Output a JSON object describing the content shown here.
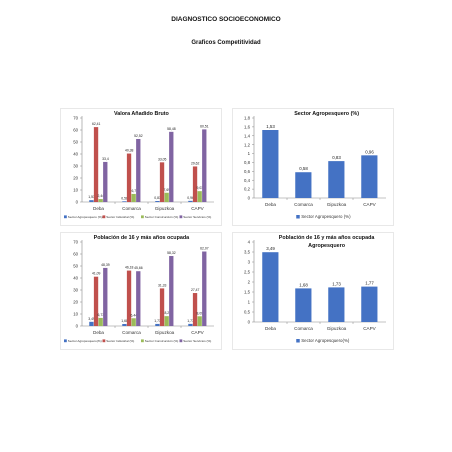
{
  "document": {
    "title": "DIAGNOSTICO SOCIOECONOMICO",
    "subtitle": "Graficos Competitividad"
  },
  "colors": {
    "agropesquero": "#4472C4",
    "industrial": "#C0504D",
    "construccion": "#9BBB59",
    "servicios": "#8064A2",
    "single": "#4472C4"
  },
  "chart_data": [
    {
      "type": "bar",
      "title": "Valora Añadido Bruto",
      "categories": [
        "Deba",
        "Comarca",
        "Gipuzkoa",
        "CAPV"
      ],
      "ylim": [
        0,
        70
      ],
      "yticks": [
        0,
        10,
        20,
        30,
        40,
        50,
        60,
        70
      ],
      "grid": false,
      "legend": "bottom",
      "series": [
        {
          "name": "Sector Agropesquero (%)",
          "values": [
            1.53,
            0.58,
            0.83,
            0.96
          ],
          "labels": [
            "1,53",
            "0,58",
            "0,83",
            "0,96"
          ]
        },
        {
          "name": "Sector Industrial (%)",
          "values": [
            62.41,
            40.38,
            33.05,
            29.62
          ],
          "labels": [
            "62,41",
            "40,38",
            "33,05",
            "29,62"
          ]
        },
        {
          "name": "Sector Construcción (%)",
          "values": [
            2.44,
            6.7,
            7.69,
            9.03
          ],
          "labels": [
            "2,44",
            "6,7",
            "7,69",
            "9,03"
          ]
        },
        {
          "name": "Sector Servicios (%)",
          "values": [
            33.4,
            52.52,
            58.48,
            60.51
          ],
          "labels": [
            "33,4",
            "52,52",
            "58,48",
            "60,51"
          ]
        }
      ]
    },
    {
      "type": "bar",
      "title": "Sector Agropesquero (%)",
      "categories": [
        "Deba",
        "Comarca",
        "Gipuzkoa",
        "CAPV"
      ],
      "ylim": [
        0,
        1.8
      ],
      "yticks": [
        "0",
        "0,2",
        "0,4",
        "0,6",
        "0,8",
        "1",
        "1,2",
        "1,4",
        "1,6",
        "1,8"
      ],
      "grid": false,
      "legend": "bottom",
      "series": [
        {
          "name": "Sector Agropesquero (%)",
          "values": [
            1.53,
            0.58,
            0.83,
            0.96
          ],
          "labels": [
            "1,53",
            "0,58",
            "0,83",
            "0,96"
          ]
        }
      ]
    },
    {
      "type": "bar",
      "title": "Población de 16 y más años ocupada",
      "categories": [
        "Deba",
        "Comarca",
        "Gipuzkoa",
        "CAPV"
      ],
      "ylim": [
        0,
        70
      ],
      "yticks": [
        0,
        10,
        20,
        30,
        40,
        50,
        60,
        70
      ],
      "grid": false,
      "legend": "bottom",
      "series": [
        {
          "name": "Sector Agropesquero(%)",
          "values": [
            3.49,
            1.68,
            1.73,
            1.77
          ],
          "labels": [
            "3,49",
            "1,68",
            "1,73",
            "1,77"
          ]
        },
        {
          "name": "Sector Industrial (%)",
          "values": [
            41.09,
            46.18,
            31.33,
            27.47
          ],
          "labels": [
            "41,09",
            "46,18",
            "31,33",
            "27,47"
          ]
        },
        {
          "name": "Sector Construcción (%)",
          "values": [
            6.73,
            6.44,
            8.2,
            8.09
          ],
          "labels": [
            "6,73",
            "6,44",
            "8,2",
            "8,09"
          ]
        },
        {
          "name": "Sector Servicios (%)",
          "values": [
            48.39,
            45.66,
            58.32,
            62.07
          ],
          "labels": [
            "48,39",
            "45,66",
            "58,32",
            "62,07"
          ]
        }
      ]
    },
    {
      "type": "bar",
      "title": "Población de 16 y más años ocupada Agropesquero",
      "title_lines": [
        "Población de 16 y más años ocupada",
        "Agropesquero"
      ],
      "categories": [
        "Deba",
        "Comarca",
        "Gipuzkoa",
        "CAPV"
      ],
      "ylim": [
        0,
        4
      ],
      "yticks": [
        "0",
        "0,5",
        "1",
        "1,5",
        "2",
        "2,5",
        "3",
        "3,5",
        "4"
      ],
      "grid": false,
      "legend": "bottom",
      "series": [
        {
          "name": "Sector Agropesquero(%)",
          "values": [
            3.49,
            1.68,
            1.73,
            1.77
          ],
          "labels": [
            "3,49",
            "1,68",
            "1,73",
            "1,77"
          ]
        }
      ]
    }
  ]
}
